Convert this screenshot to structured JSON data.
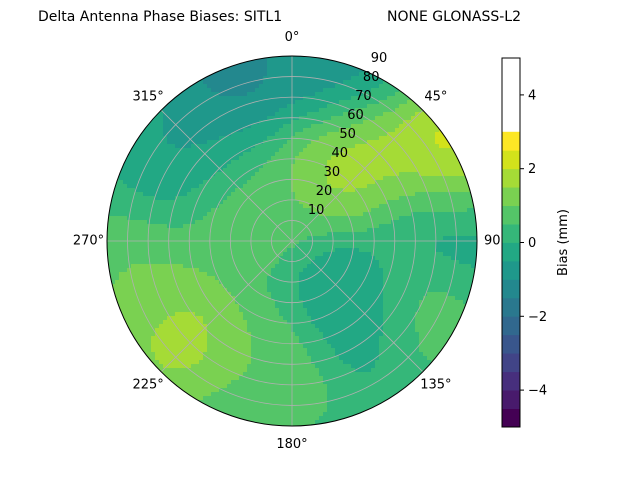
{
  "chart_data": {
    "type": "polar-contour",
    "title": "Delta Antenna Phase Biases: SITL1",
    "subtitle": "NONE GLONASS-L2",
    "angle_ticks": [
      "0°",
      "45°",
      "90°",
      "135°",
      "180°",
      "225°",
      "270°",
      "315°"
    ],
    "angle_tick_values": [
      0,
      45,
      90,
      135,
      180,
      225,
      270,
      315
    ],
    "radial_ticks": [
      "10",
      "20",
      "30",
      "40",
      "50",
      "60",
      "70",
      "80",
      "90"
    ],
    "radial_tick_values": [
      10,
      20,
      30,
      40,
      50,
      60,
      70,
      80,
      90
    ],
    "radial_range": [
      0,
      90
    ],
    "angle_direction": "clockwise",
    "angle_zero": "top",
    "grid": true,
    "colorbar": {
      "label": "Bias (mm)",
      "ticks": [
        "−4",
        "−2",
        "0",
        "2",
        "4"
      ],
      "tick_values": [
        -4,
        -2,
        0,
        2,
        4
      ],
      "range": [
        -5,
        5
      ],
      "levels": [
        -5,
        -4.5,
        -4,
        -3.5,
        -3,
        -2.5,
        -2,
        -1.5,
        -1,
        -0.5,
        0,
        0.5,
        1,
        1.5,
        2,
        2.5,
        3,
        3.5,
        4,
        4.5,
        5
      ],
      "colors": [
        "#440154",
        "#481a6c",
        "#472f7d",
        "#414487",
        "#39568c",
        "#31688e",
        "#2a788e",
        "#23888e",
        "#1f988b",
        "#22a884",
        "#35b779",
        "#54c568",
        "#7ad151",
        "#a5db36",
        "#d2e21b",
        "#fde725"
      ]
    },
    "bias_regions": [
      {
        "azimuth": 35,
        "elevation": 48,
        "bias_mm": 2.2
      },
      {
        "azimuth": 65,
        "elevation": 85,
        "bias_mm": 3.5
      },
      {
        "azimuth": 230,
        "elevation": 72,
        "bias_mm": 2.2
      },
      {
        "azimuth": 255,
        "elevation": 80,
        "bias_mm": 1.2
      },
      {
        "azimuth": 300,
        "elevation": 28,
        "bias_mm": 1.1
      },
      {
        "azimuth": 312,
        "elevation": 65,
        "bias_mm": -0.8
      },
      {
        "azimuth": 340,
        "elevation": 88,
        "bias_mm": -1.6
      },
      {
        "azimuth": 10,
        "elevation": 85,
        "bias_mm": -1.2
      },
      {
        "azimuth": 80,
        "elevation": 78,
        "bias_mm": -1.0
      },
      {
        "azimuth": 140,
        "elevation": 45,
        "bias_mm": -1.1
      },
      {
        "azimuth": 185,
        "elevation": 58,
        "bias_mm": 1.2
      },
      {
        "azimuth": 120,
        "elevation": 68,
        "bias_mm": 1.0
      }
    ]
  }
}
